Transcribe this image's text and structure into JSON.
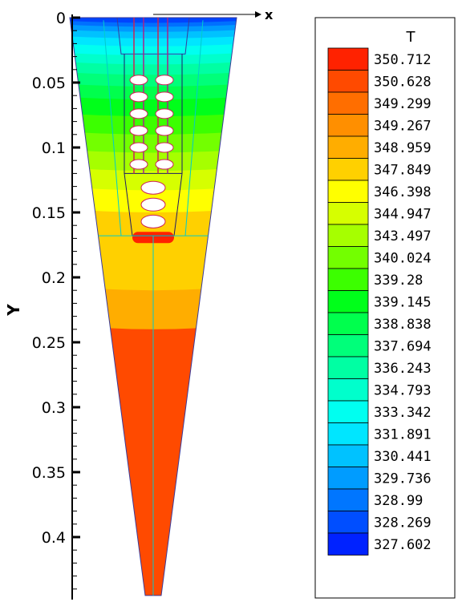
{
  "chart_data": {
    "type": "heatmap",
    "xlabel": "x",
    "ylabel": "Y",
    "yticks": [
      "0",
      "0.05",
      "0.1",
      "0.15",
      "0.2",
      "0.25",
      "0.3",
      "0.35",
      "0.4"
    ],
    "ytick_values": [
      0,
      0.05,
      0.1,
      0.15,
      0.2,
      0.25,
      0.3,
      0.35,
      0.4
    ],
    "ylim": [
      0,
      0.445
    ],
    "y_inverted": true,
    "legend": {
      "title": "T",
      "levels": [
        {
          "label": "350.712",
          "color": "#ff2200"
        },
        {
          "label": "350.628",
          "color": "#ff4a00"
        },
        {
          "label": "349.299",
          "color": "#ff6e00"
        },
        {
          "label": "349.267",
          "color": "#ff8f00"
        },
        {
          "label": "348.959",
          "color": "#ffad00"
        },
        {
          "label": "347.849",
          "color": "#ffd000"
        },
        {
          "label": "346.398",
          "color": "#ffff00"
        },
        {
          "label": "344.947",
          "color": "#d6ff00"
        },
        {
          "label": "343.497",
          "color": "#a6ff00"
        },
        {
          "label": "340.024",
          "color": "#73ff00"
        },
        {
          "label": "339.28",
          "color": "#3cff00"
        },
        {
          "label": "339.145",
          "color": "#00ff1a"
        },
        {
          "label": "338.838",
          "color": "#00ff4d"
        },
        {
          "label": "337.694",
          "color": "#00ff7a"
        },
        {
          "label": "336.243",
          "color": "#00ffa3"
        },
        {
          "label": "334.793",
          "color": "#00ffcc"
        },
        {
          "label": "333.342",
          "color": "#00fff0"
        },
        {
          "label": "331.891",
          "color": "#00e6ff"
        },
        {
          "label": "330.441",
          "color": "#00c2ff"
        },
        {
          "label": "329.736",
          "color": "#009cff"
        },
        {
          "label": "328.99",
          "color": "#0076ff"
        },
        {
          "label": "328.269",
          "color": "#004eff"
        },
        {
          "label": "327.602",
          "color": "#0022ff"
        }
      ]
    },
    "field_bands": [
      {
        "y": [
          0,
          0.004
        ],
        "color": "#0044ff"
      },
      {
        "y": [
          0.004,
          0.007
        ],
        "color": "#0070ff"
      },
      {
        "y": [
          0.007,
          0.011
        ],
        "color": "#009aff"
      },
      {
        "y": [
          0.011,
          0.016
        ],
        "color": "#00c2ff"
      },
      {
        "y": [
          0.016,
          0.022
        ],
        "color": "#00e6ff"
      },
      {
        "y": [
          0.022,
          0.029
        ],
        "color": "#00fff0"
      },
      {
        "y": [
          0.029,
          0.036
        ],
        "color": "#00ffcc"
      },
      {
        "y": [
          0.036,
          0.044
        ],
        "color": "#00ffa3"
      },
      {
        "y": [
          0.044,
          0.053
        ],
        "color": "#00ff7a"
      },
      {
        "y": [
          0.053,
          0.063
        ],
        "color": "#00ff4d"
      },
      {
        "y": [
          0.063,
          0.076
        ],
        "color": "#00ff1a"
      },
      {
        "y": [
          0.076,
          0.09
        ],
        "color": "#3cff00"
      },
      {
        "y": [
          0.09,
          0.104
        ],
        "color": "#73ff00"
      },
      {
        "y": [
          0.104,
          0.118
        ],
        "color": "#a6ff00"
      },
      {
        "y": [
          0.118,
          0.133
        ],
        "color": "#d6ff00"
      },
      {
        "y": [
          0.133,
          0.15
        ],
        "color": "#ffff00"
      },
      {
        "y": [
          0.15,
          0.21
        ],
        "color": "#ffd000"
      },
      {
        "y": [
          0.21,
          0.24
        ],
        "color": "#ffad00"
      },
      {
        "y": [
          0.24,
          0.445
        ],
        "color": "#ff4a00"
      }
    ],
    "ellipse_rows": [
      0.048,
      0.061,
      0.074,
      0.087,
      0.1,
      0.113
    ],
    "large_ellipses": [
      0.131,
      0.144,
      0.157
    ]
  }
}
